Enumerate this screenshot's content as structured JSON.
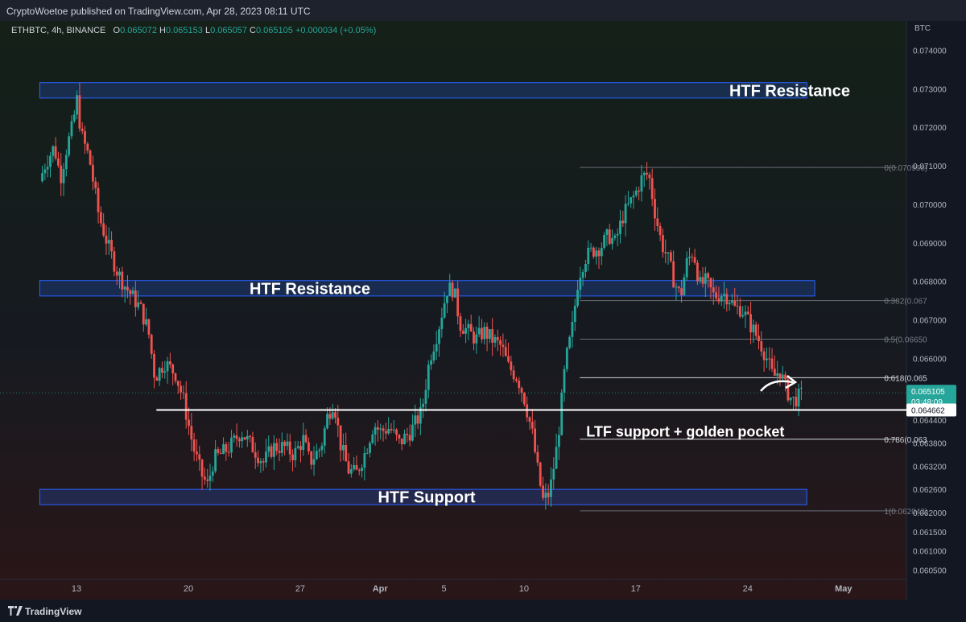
{
  "header": {
    "published": "CryptoWoetoe published on TradingView.com, Apr 28, 2023 08:11 UTC"
  },
  "legend": {
    "symbol": "ETHBTC, 4h, BINANCE",
    "open_label": "O",
    "open": "0.065072",
    "high_label": "H",
    "high": "0.065153",
    "low_label": "L",
    "low": "0.065057",
    "close_label": "C",
    "close": "0.065105",
    "change": "+0.000034 (+0.05%)"
  },
  "footer": {
    "brand": "TradingView"
  },
  "colors": {
    "up": "#26a69a",
    "down": "#ef5350",
    "zone_fill": "#2962ff",
    "zone_border": "#2962ff",
    "annotation": "#ffffff",
    "price_tag": "#26a69a"
  },
  "chart_data": {
    "type": "candlestick",
    "symbol": "ETHBTC",
    "timeframe": "4h",
    "exchange": "BINANCE",
    "y_unit": "BTC",
    "ylim": [
      0.0602,
      0.0747
    ],
    "xlim_days": [
      10.7,
      33.3
    ],
    "y_ticks": [
      "0.074000",
      "0.073000",
      "0.072000",
      "0.071000",
      "0.070000",
      "0.069000",
      "0.068000",
      "0.067000",
      "0.066000",
      "0.064400",
      "0.063800",
      "0.063200",
      "0.062600",
      "0.062000",
      "0.061500",
      "0.061000",
      "0.060500"
    ],
    "x_ticks": [
      {
        "label": "13",
        "day": 13
      },
      {
        "label": "20",
        "day": 20
      },
      {
        "label": "27",
        "day": 27
      },
      {
        "label": "Apr",
        "day": 32,
        "bold": true
      },
      {
        "label": "5",
        "day": 36
      },
      {
        "label": "10",
        "day": 41
      },
      {
        "label": "17",
        "day": 48
      },
      {
        "label": "24",
        "day": 55
      },
      {
        "label": "May",
        "day": 61,
        "bold": true
      }
    ],
    "close_path": [
      [
        10.7,
        0.0706
      ],
      [
        11.0,
        0.071
      ],
      [
        11.6,
        0.0715
      ],
      [
        12.0,
        0.0707
      ],
      [
        12.4,
        0.0715
      ],
      [
        12.8,
        0.0721
      ],
      [
        13.0,
        0.0728
      ],
      [
        13.3,
        0.0718
      ],
      [
        13.8,
        0.0712
      ],
      [
        14.4,
        0.0697
      ],
      [
        15.0,
        0.0689
      ],
      [
        15.5,
        0.0683
      ],
      [
        16.0,
        0.0679
      ],
      [
        16.5,
        0.0676
      ],
      [
        17.0,
        0.0673
      ],
      [
        17.5,
        0.0667
      ],
      [
        17.9,
        0.0655
      ],
      [
        18.5,
        0.0659
      ],
      [
        19.2,
        0.0656
      ],
      [
        19.7,
        0.0649
      ],
      [
        20.3,
        0.0637
      ],
      [
        20.8,
        0.063
      ],
      [
        21.2,
        0.0627
      ],
      [
        21.6,
        0.0634
      ],
      [
        22.0,
        0.0635
      ],
      [
        22.6,
        0.0637
      ],
      [
        23.3,
        0.0641
      ],
      [
        24.0,
        0.0637
      ],
      [
        24.7,
        0.0633
      ],
      [
        25.3,
        0.0637
      ],
      [
        26.0,
        0.0637
      ],
      [
        26.6,
        0.0635
      ],
      [
        27.2,
        0.0639
      ],
      [
        27.6,
        0.0633
      ],
      [
        28.3,
        0.0637
      ],
      [
        28.7,
        0.0645
      ],
      [
        29.1,
        0.0649
      ],
      [
        29.5,
        0.0638
      ],
      [
        30.0,
        0.0631
      ],
      [
        30.5,
        0.063
      ],
      [
        31.1,
        0.0636
      ],
      [
        31.6,
        0.0643
      ],
      [
        32.0,
        0.0641
      ],
      [
        32.6,
        0.0642
      ],
      [
        33.2,
        0.0638
      ],
      [
        33.9,
        0.0641
      ],
      [
        34.6,
        0.0646
      ],
      [
        35.1,
        0.066
      ],
      [
        35.6,
        0.0667
      ],
      [
        36.2,
        0.0678
      ],
      [
        36.6,
        0.0678
      ],
      [
        37.0,
        0.0669
      ],
      [
        37.5,
        0.0667
      ],
      [
        38.0,
        0.0665
      ],
      [
        38.5,
        0.0667
      ],
      [
        39.0,
        0.0665
      ],
      [
        39.6,
        0.0663
      ],
      [
        40.0,
        0.0658
      ],
      [
        40.6,
        0.0655
      ],
      [
        41.0,
        0.065
      ],
      [
        41.5,
        0.0641
      ],
      [
        41.9,
        0.063
      ],
      [
        42.2,
        0.0623
      ],
      [
        42.6,
        0.0625
      ],
      [
        43.1,
        0.0638
      ],
      [
        43.6,
        0.0659
      ],
      [
        44.0,
        0.0667
      ],
      [
        44.4,
        0.0681
      ],
      [
        44.8,
        0.0686
      ],
      [
        45.3,
        0.0688
      ],
      [
        45.8,
        0.0689
      ],
      [
        46.3,
        0.0692
      ],
      [
        46.7,
        0.069
      ],
      [
        47.2,
        0.0697
      ],
      [
        47.6,
        0.07
      ],
      [
        48.0,
        0.0703
      ],
      [
        48.4,
        0.0707
      ],
      [
        48.8,
        0.0708
      ],
      [
        49.2,
        0.0698
      ],
      [
        49.6,
        0.069
      ],
      [
        50.0,
        0.0686
      ],
      [
        50.4,
        0.068
      ],
      [
        50.8,
        0.0676
      ],
      [
        51.2,
        0.0685
      ],
      [
        51.6,
        0.0688
      ],
      [
        52.0,
        0.0679
      ],
      [
        52.4,
        0.068
      ],
      [
        52.9,
        0.0676
      ],
      [
        53.4,
        0.0677
      ],
      [
        53.8,
        0.0676
      ],
      [
        54.2,
        0.0673
      ],
      [
        54.6,
        0.0673
      ],
      [
        55.0,
        0.067
      ],
      [
        55.4,
        0.0667
      ],
      [
        55.8,
        0.0664
      ],
      [
        56.2,
        0.066
      ],
      [
        56.6,
        0.0655
      ],
      [
        57.0,
        0.0657
      ],
      [
        57.4,
        0.0652
      ],
      [
        57.8,
        0.0649
      ],
      [
        58.2,
        0.065
      ],
      [
        58.5,
        0.0651
      ]
    ],
    "zones": [
      {
        "label": "HTF Resistance",
        "y_low": 0.07276,
        "y_high": 0.07316,
        "x_start": 10.7,
        "x_end": 58.7
      },
      {
        "label": "HTF Resistance",
        "y_low": 0.06762,
        "y_high": 0.06802,
        "x_start": 10.7,
        "x_end": 59.2
      },
      {
        "label": "HTF Support",
        "y_low": 0.0622,
        "y_high": 0.0626,
        "x_start": 10.7,
        "x_end": 58.7
      }
    ],
    "horizontal_line": {
      "value": 0.064662,
      "label": "0.064662",
      "x_start": 18.0
    },
    "fibonacci": {
      "x_start": 44.5,
      "levels": [
        {
          "ratio": "0",
          "value": 0.070958,
          "label": "0(0.070958)"
        },
        {
          "ratio": "0.382",
          "value": 0.0675,
          "label": "0.382(0.067"
        },
        {
          "ratio": "0.5",
          "value": 0.0665,
          "label": "0.5(0.06650"
        },
        {
          "ratio": "0.618",
          "value": 0.0655,
          "label": "0.618(0.065"
        },
        {
          "ratio": "0.786",
          "value": 0.0639,
          "label": "0.786(0.063"
        },
        {
          "ratio": "1",
          "value": 0.062042,
          "label": "1(0.062042)"
        }
      ]
    },
    "last_price": {
      "value": "0.065105",
      "countdown": "03:48:09"
    },
    "annotations": [
      {
        "text": "LTF support + golden pocket",
        "day": 51.1,
        "y": 0.0641
      }
    ]
  }
}
